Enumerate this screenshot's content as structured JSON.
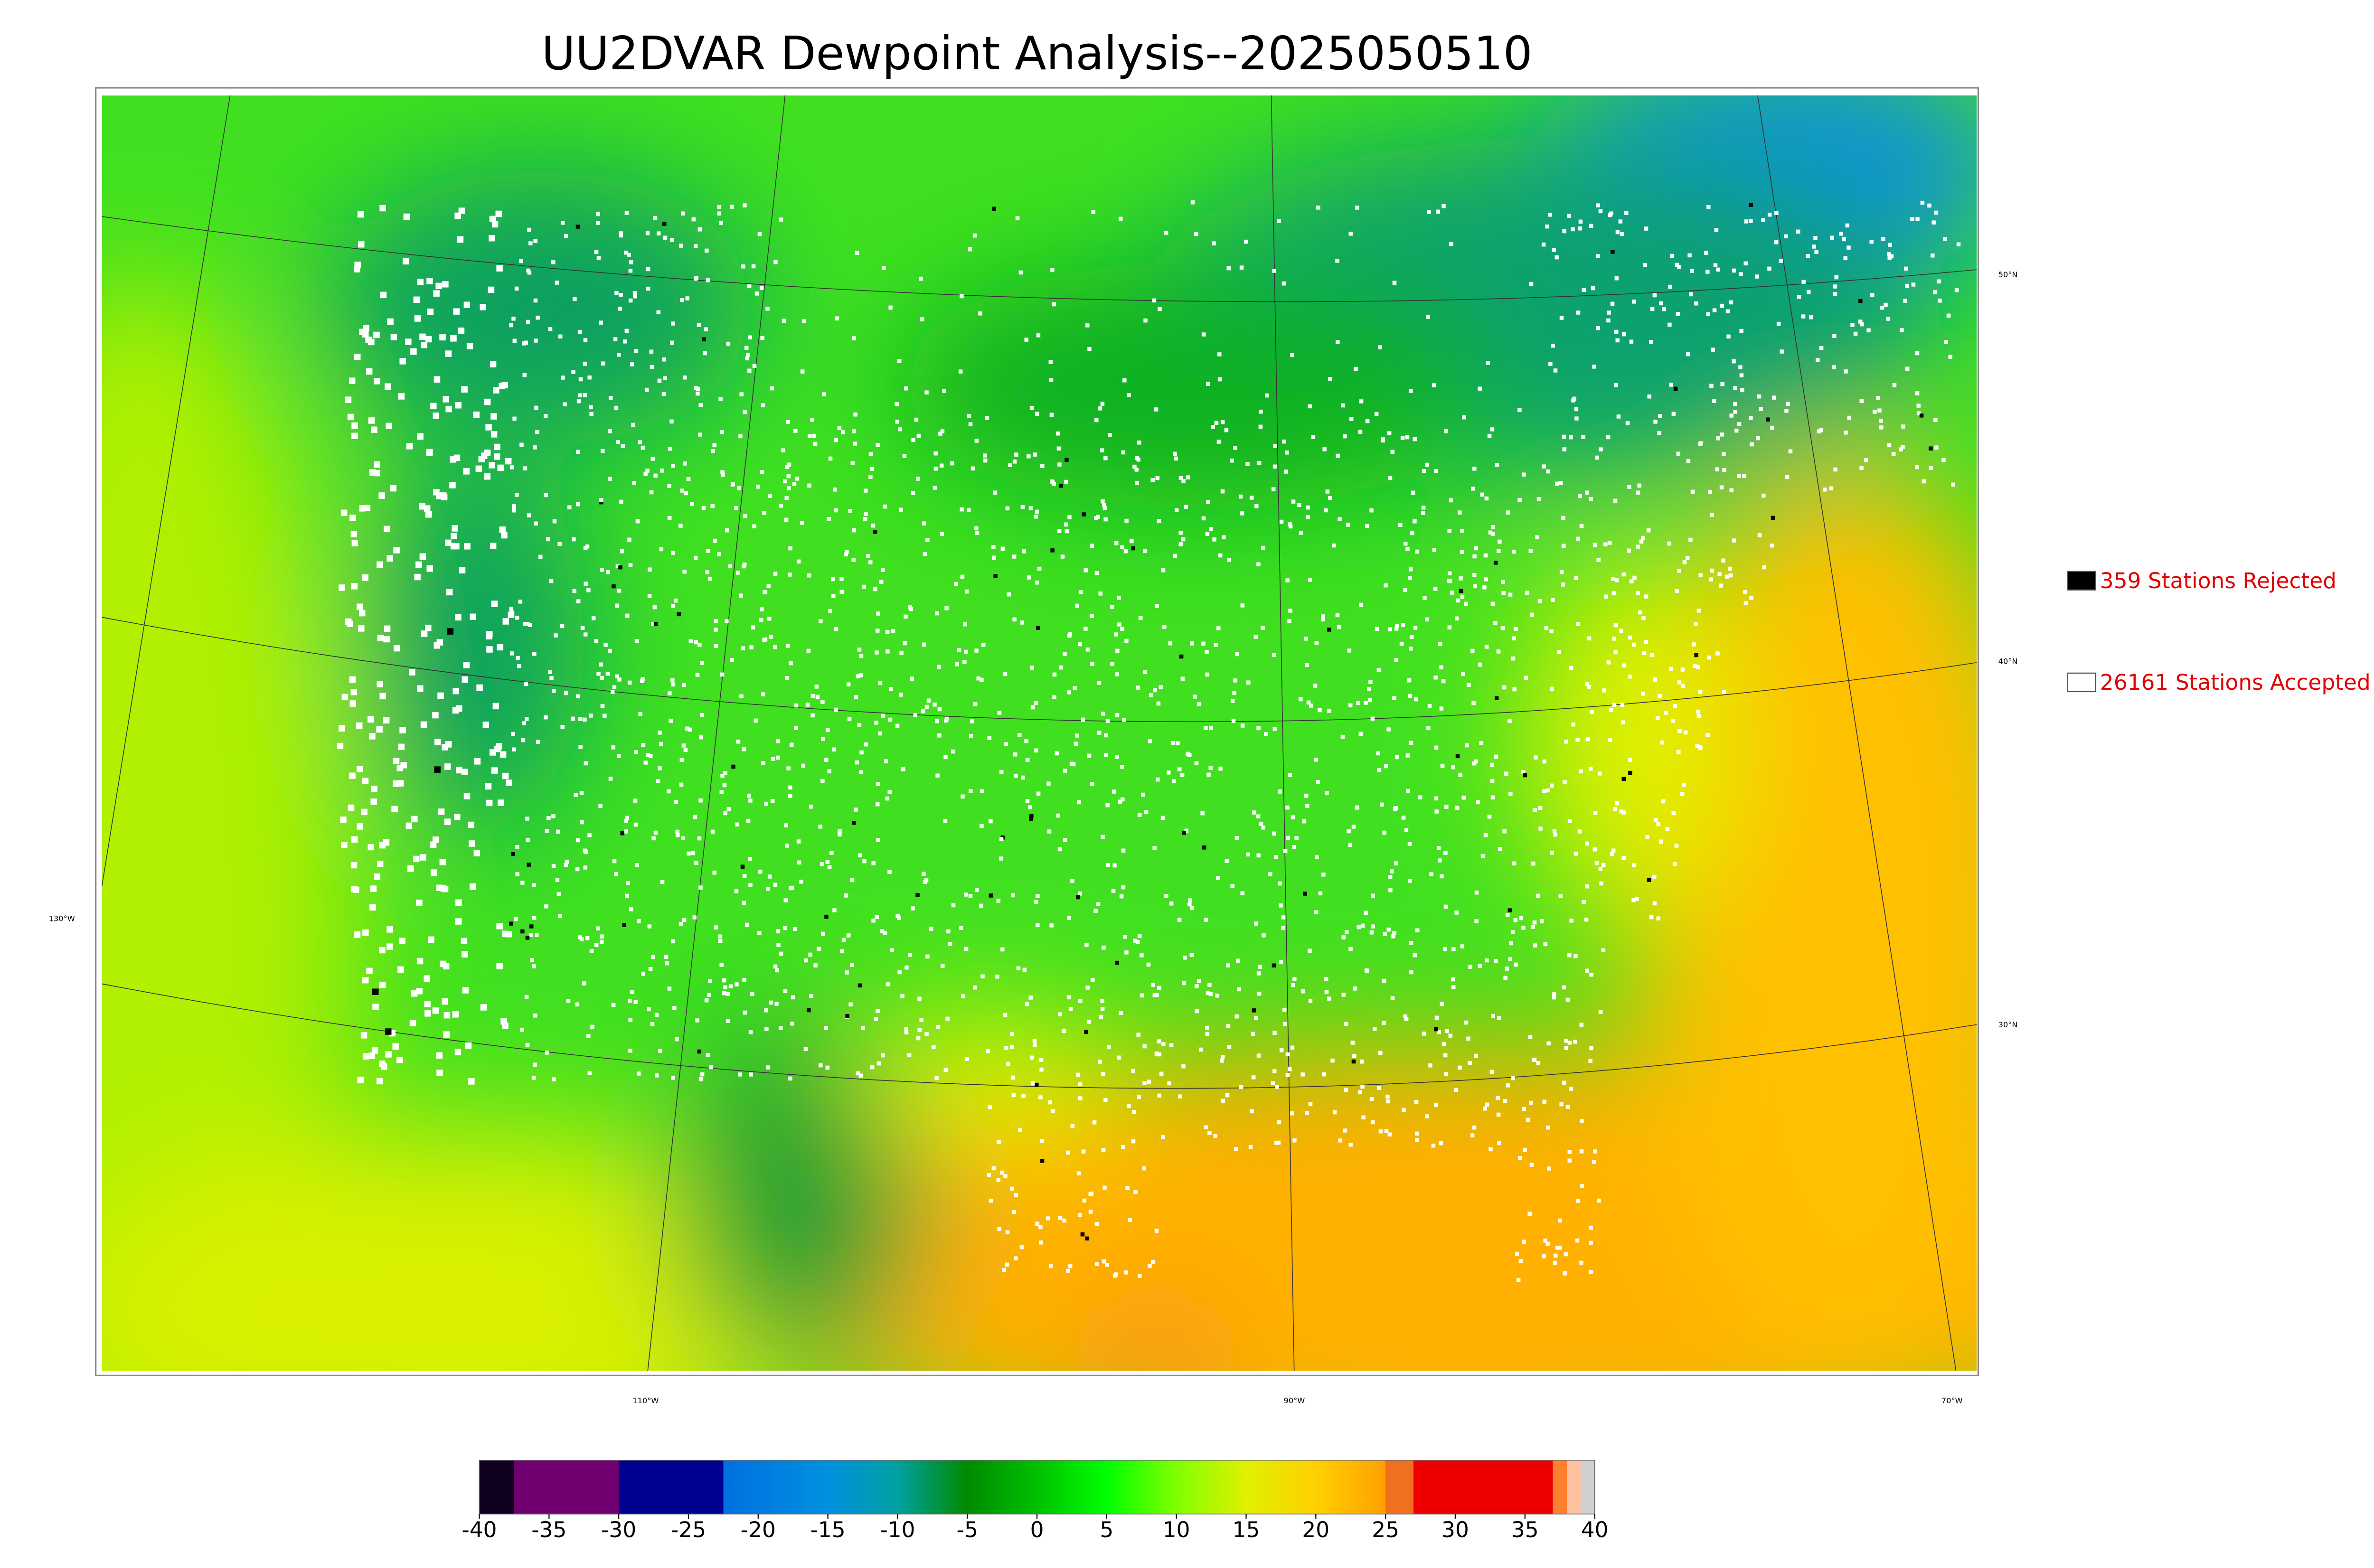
{
  "title": "UU2DVAR Dewpoint Analysis--2025050510",
  "legend": [
    {
      "label": "359 Stations Rejected",
      "color": "#000000"
    },
    {
      "label": "26161 Stations Accepted",
      "color": "#ffffff"
    }
  ],
  "map": {
    "lat_labels": [
      "50°N",
      "40°N",
      "30°N"
    ],
    "lon_labels": [
      "130°W",
      "110°W",
      "90°W",
      "70°W"
    ]
  },
  "colorbar": {
    "range": [
      -40,
      40
    ],
    "ticks": [
      -40,
      -35,
      -30,
      -25,
      -20,
      -15,
      -10,
      -5,
      0,
      5,
      10,
      15,
      20,
      25,
      30,
      35,
      40
    ],
    "stops": [
      {
        "value": -40,
        "color": "#100020"
      },
      {
        "value": -37.5,
        "color": "#100020"
      },
      {
        "value": -37.5,
        "color": "#700070"
      },
      {
        "value": -30,
        "color": "#700070"
      },
      {
        "value": -30,
        "color": "#000090"
      },
      {
        "value": -22.5,
        "color": "#000090"
      },
      {
        "value": -22.5,
        "color": "#0070e0"
      },
      {
        "value": -15,
        "color": "#0090e0"
      },
      {
        "value": -10,
        "color": "#00a0a0"
      },
      {
        "value": -5,
        "color": "#008a00"
      },
      {
        "value": 0,
        "color": "#00c000"
      },
      {
        "value": 5,
        "color": "#00ff00"
      },
      {
        "value": 10,
        "color": "#80ff00"
      },
      {
        "value": 15,
        "color": "#e0f000"
      },
      {
        "value": 20,
        "color": "#ffd000"
      },
      {
        "value": 25,
        "color": "#ffa000"
      },
      {
        "value": 25,
        "color": "#f07020"
      },
      {
        "value": 27,
        "color": "#f07020"
      },
      {
        "value": 27,
        "color": "#ee0000"
      },
      {
        "value": 37,
        "color": "#ee0000"
      },
      {
        "value": 37,
        "color": "#ff8030"
      },
      {
        "value": 38,
        "color": "#ff8030"
      },
      {
        "value": 38,
        "color": "#ffc0a0"
      },
      {
        "value": 39,
        "color": "#ffc0a0"
      },
      {
        "value": 39,
        "color": "#d0d0d0"
      },
      {
        "value": 40,
        "color": "#d0d0d0"
      }
    ]
  }
}
